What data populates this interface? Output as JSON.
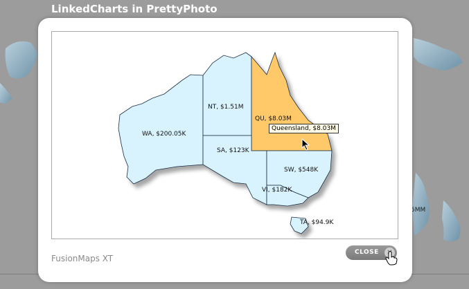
{
  "page": {
    "title": "LinkedCharts in PrettyPhoto"
  },
  "modal": {
    "caption": "FusionMaps XT",
    "close_label": "CLOSE",
    "close_icon": "close-icon"
  },
  "map": {
    "states": [
      {
        "id": "WA",
        "label": "WA, $200.05K",
        "highlighted": false
      },
      {
        "id": "NT",
        "label": "NT, $1.51M",
        "highlighted": false
      },
      {
        "id": "QU",
        "label": "QU, $8.03M",
        "highlighted": true
      },
      {
        "id": "SA",
        "label": "SA, $123K",
        "highlighted": false
      },
      {
        "id": "SW",
        "label": "SW, $548K",
        "highlighted": false
      },
      {
        "id": "VI",
        "label": "VI, $182K",
        "highlighted": false
      },
      {
        "id": "TA",
        "label": "TA, $94.9K",
        "highlighted": false
      }
    ],
    "tooltip": "Queensland, $8.03M",
    "colors": {
      "default_fill": "#d9f3fe",
      "highlight_fill": "#ffc96a",
      "border": "#1b2f44"
    }
  },
  "backdrop": {
    "label_fragment": "5MM"
  }
}
